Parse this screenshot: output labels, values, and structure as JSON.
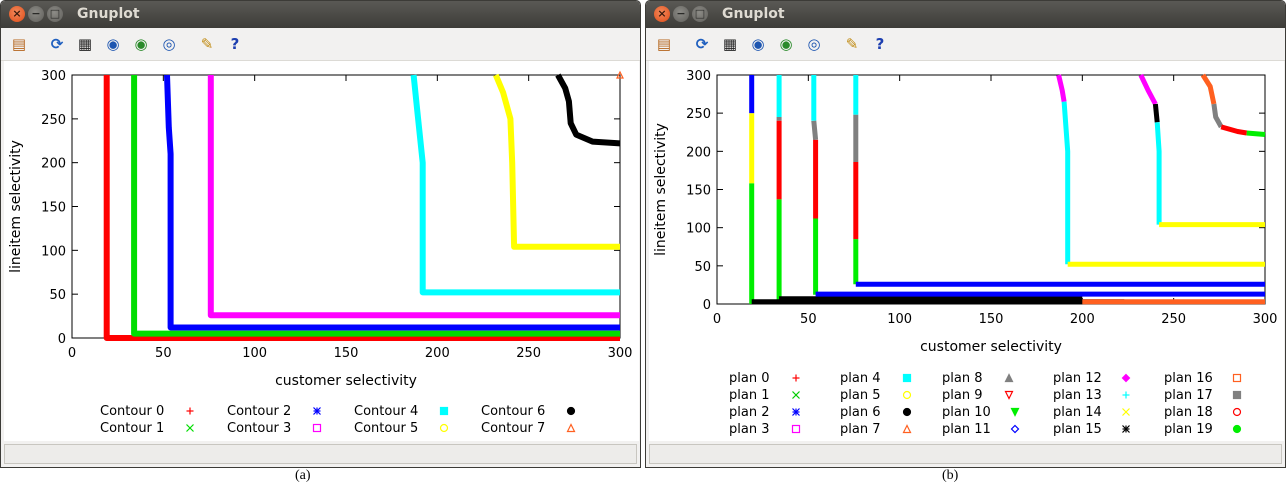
{
  "windows": [
    {
      "title": "Gnuplot",
      "caption": "(a)",
      "tools": [
        "copy-clipboard-icon",
        "replot-icon",
        "grid-icon",
        "zoom-previous-icon",
        "zoom-next-icon",
        "autoscale-icon",
        "settings-icon",
        "help-icon"
      ]
    },
    {
      "title": "Gnuplot",
      "caption": "(b)",
      "tools": [
        "copy-clipboard-icon",
        "replot-icon",
        "grid-icon",
        "zoom-previous-icon",
        "zoom-next-icon",
        "autoscale-icon",
        "settings-icon",
        "help-icon"
      ]
    }
  ],
  "chart_data": [
    {
      "type": "line",
      "xlabel": "customer selectivity",
      "ylabel": "lineitem selectivity",
      "xlim": [
        0,
        300
      ],
      "ylim": [
        0,
        300
      ],
      "xticks": [
        0,
        50,
        100,
        150,
        200,
        250,
        300
      ],
      "yticks": [
        0,
        50,
        100,
        150,
        200,
        250,
        300
      ],
      "legend_position": "bottom",
      "series": [
        {
          "name": "Contour 0",
          "color": "#ff0000",
          "marker": "+",
          "x": [
            19,
            19,
            300
          ],
          "y": [
            300,
            0,
            0
          ]
        },
        {
          "name": "Contour 1",
          "color": "#00dd00",
          "marker": "x",
          "x": [
            34,
            34,
            300
          ],
          "y": [
            300,
            5,
            5
          ]
        },
        {
          "name": "Contour 2",
          "color": "#0000ff",
          "marker": "*",
          "x": [
            52,
            53,
            54,
            54,
            300
          ],
          "y": [
            300,
            240,
            210,
            12,
            12
          ]
        },
        {
          "name": "Contour 3",
          "color": "#ff00ff",
          "marker": "square",
          "x": [
            76,
            76,
            300
          ],
          "y": [
            300,
            26,
            26
          ]
        },
        {
          "name": "Contour 4",
          "color": "#00ffff",
          "marker": "filled-square",
          "x": [
            187,
            189,
            192,
            192,
            300
          ],
          "y": [
            300,
            260,
            200,
            52,
            52
          ]
        },
        {
          "name": "Contour 5",
          "color": "#ffff00",
          "marker": "circle",
          "x": [
            232,
            236,
            240,
            241,
            242,
            300
          ],
          "y": [
            300,
            280,
            250,
            200,
            104,
            104
          ]
        },
        {
          "name": "Contour 6",
          "color": "#000000",
          "marker": "filled-circle",
          "x": [
            266,
            270,
            272,
            273,
            276,
            285,
            300
          ],
          "y": [
            300,
            285,
            270,
            245,
            232,
            224,
            222
          ]
        },
        {
          "name": "Contour 7",
          "color": "#ff6020",
          "marker": "triangle",
          "x": [
            300
          ],
          "y": [
            300
          ]
        }
      ]
    },
    {
      "type": "line",
      "xlabel": "customer selectivity",
      "ylabel": "lineitem selectivity",
      "xlim": [
        0,
        300
      ],
      "ylim": [
        0,
        300
      ],
      "xticks": [
        0,
        50,
        100,
        150,
        200,
        250,
        300
      ],
      "yticks": [
        0,
        50,
        100,
        150,
        200,
        250,
        300
      ],
      "legend_position": "bottom",
      "legend": [
        {
          "name": "plan 0",
          "color": "#ff0000",
          "marker": "+"
        },
        {
          "name": "plan 1",
          "color": "#00cc00",
          "marker": "x"
        },
        {
          "name": "plan 2",
          "color": "#0000ff",
          "marker": "*"
        },
        {
          "name": "plan 3",
          "color": "#ff00ff",
          "marker": "square"
        },
        {
          "name": "plan 4",
          "color": "#00ffff",
          "marker": "filled-square"
        },
        {
          "name": "plan 5",
          "color": "#ffff00",
          "marker": "circle"
        },
        {
          "name": "plan 6",
          "color": "#000000",
          "marker": "filled-circle"
        },
        {
          "name": "plan 7",
          "color": "#ff6020",
          "marker": "triangle"
        },
        {
          "name": "plan 8",
          "color": "#808080",
          "marker": "filled-triangle"
        },
        {
          "name": "plan 9",
          "color": "#ff0000",
          "marker": "inverted-triangle"
        },
        {
          "name": "plan 10",
          "color": "#00ee00",
          "marker": "filled-inverted-triangle"
        },
        {
          "name": "plan 11",
          "color": "#0000ff",
          "marker": "diamond"
        },
        {
          "name": "plan 12",
          "color": "#ff00ff",
          "marker": "filled-diamond"
        },
        {
          "name": "plan 13",
          "color": "#00ffff",
          "marker": "+"
        },
        {
          "name": "plan 14",
          "color": "#ffff00",
          "marker": "x"
        },
        {
          "name": "plan 15",
          "color": "#000000",
          "marker": "*"
        },
        {
          "name": "plan 16",
          "color": "#ff6020",
          "marker": "square"
        },
        {
          "name": "plan 17",
          "color": "#808080",
          "marker": "filled-square"
        },
        {
          "name": "plan 18",
          "color": "#ff0000",
          "marker": "circle"
        },
        {
          "name": "plan 19",
          "color": "#00ee00",
          "marker": "filled-circle"
        }
      ],
      "segments": [
        {
          "color": "#0000ff",
          "x": [
            19,
            19
          ],
          "y": [
            300,
            250
          ]
        },
        {
          "color": "#ffff00",
          "x": [
            19,
            19
          ],
          "y": [
            250,
            158
          ]
        },
        {
          "color": "#00ee00",
          "x": [
            19,
            19
          ],
          "y": [
            158,
            0
          ]
        },
        {
          "color": "#00ffff",
          "x": [
            34,
            34
          ],
          "y": [
            300,
            245
          ]
        },
        {
          "color": "#808080",
          "x": [
            34,
            34
          ],
          "y": [
            245,
            240
          ]
        },
        {
          "color": "#ff0000",
          "x": [
            34,
            34
          ],
          "y": [
            240,
            137
          ]
        },
        {
          "color": "#00ee00",
          "x": [
            34,
            34
          ],
          "y": [
            137,
            5
          ]
        },
        {
          "color": "#00ffff",
          "x": [
            53,
            53
          ],
          "y": [
            300,
            240
          ]
        },
        {
          "color": "#808080",
          "x": [
            53,
            54
          ],
          "y": [
            240,
            215
          ]
        },
        {
          "color": "#ff0000",
          "x": [
            54,
            54
          ],
          "y": [
            215,
            112
          ]
        },
        {
          "color": "#00ee00",
          "x": [
            54,
            54
          ],
          "y": [
            112,
            12
          ]
        },
        {
          "color": "#00ffff",
          "x": [
            76,
            76
          ],
          "y": [
            300,
            248
          ]
        },
        {
          "color": "#808080",
          "x": [
            76,
            76
          ],
          "y": [
            248,
            186
          ]
        },
        {
          "color": "#ff0000",
          "x": [
            76,
            76
          ],
          "y": [
            186,
            85
          ]
        },
        {
          "color": "#00ee00",
          "x": [
            76,
            76
          ],
          "y": [
            85,
            26
          ]
        },
        {
          "color": "#ff00ff",
          "x": [
            187,
            189,
            190
          ],
          "y": [
            300,
            280,
            265
          ]
        },
        {
          "color": "#00ffff",
          "x": [
            190,
            192,
            192
          ],
          "y": [
            265,
            200,
            52
          ]
        },
        {
          "color": "#ff00ff",
          "x": [
            232,
            236,
            240
          ],
          "y": [
            300,
            280,
            262
          ]
        },
        {
          "color": "#000000",
          "x": [
            240,
            241
          ],
          "y": [
            262,
            238
          ]
        },
        {
          "color": "#00ffff",
          "x": [
            241,
            242,
            242
          ],
          "y": [
            238,
            200,
            104
          ]
        },
        {
          "color": "#ff6020",
          "x": [
            266,
            270,
            272
          ],
          "y": [
            300,
            285,
            262
          ]
        },
        {
          "color": "#808080",
          "x": [
            272,
            273,
            276
          ],
          "y": [
            262,
            245,
            232
          ]
        },
        {
          "color": "#ff0000",
          "x": [
            276,
            285,
            290
          ],
          "y": [
            232,
            226,
            224
          ]
        },
        {
          "color": "#00ee00",
          "x": [
            290,
            300
          ],
          "y": [
            224,
            222
          ]
        },
        {
          "color": "#000000",
          "x": [
            19,
            223
          ],
          "y": [
            3,
            3
          ]
        },
        {
          "color": "#000000",
          "x": [
            34,
            200
          ],
          "y": [
            7,
            7
          ]
        },
        {
          "color": "#ff6020",
          "x": [
            200,
            300
          ],
          "y": [
            3,
            3
          ]
        },
        {
          "color": "#0000ff",
          "x": [
            54,
            300
          ],
          "y": [
            13,
            13
          ]
        },
        {
          "color": "#0000ff",
          "x": [
            76,
            300
          ],
          "y": [
            26,
            26
          ]
        },
        {
          "color": "#ffff00",
          "x": [
            192,
            300
          ],
          "y": [
            52,
            52
          ]
        },
        {
          "color": "#ffff00",
          "x": [
            242,
            300
          ],
          "y": [
            104,
            104
          ]
        }
      ]
    }
  ]
}
